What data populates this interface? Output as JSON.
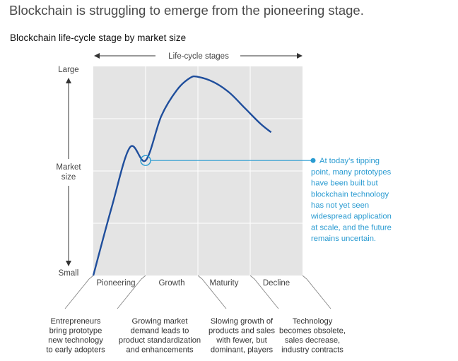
{
  "headline": "Blockchain is struggling to emerge from the pioneering stage.",
  "chart_data": {
    "type": "line",
    "title": "Blockchain life-cycle stage by market size",
    "top_axis_label": "Life-cycle stages",
    "ylabel_lines": [
      "Market",
      "size"
    ],
    "y_top_label": "Large",
    "y_bottom_label": "Small",
    "stages": [
      {
        "name": "Pioneering",
        "description": [
          "Entrepreneurs",
          "bring prototype",
          "new technology",
          "to early adopters"
        ]
      },
      {
        "name": "Growth",
        "description": [
          "Growing market",
          "demand leads to",
          "product standardization",
          "and enhancements"
        ]
      },
      {
        "name": "Maturity",
        "description": [
          "Slowing growth of",
          "products and sales",
          "with fewer, but",
          "dominant, players"
        ]
      },
      {
        "name": "Decline",
        "description": [
          "Technology",
          "becomes obsolete,",
          "sales decrease,",
          "industry contracts"
        ]
      }
    ],
    "xlim": [
      0,
      4
    ],
    "ylim": [
      0,
      4
    ],
    "grid": true,
    "curve": {
      "x": [
        0,
        0.35,
        0.7,
        1.0,
        1.3,
        1.6,
        1.85,
        2.0,
        2.3,
        2.6,
        2.9,
        3.2,
        3.4
      ],
      "y": [
        0,
        1.3,
        2.45,
        2.2,
        3.05,
        3.55,
        3.78,
        3.8,
        3.7,
        3.5,
        3.2,
        2.9,
        2.74
      ]
    },
    "highlight_point": {
      "x": 1.0,
      "y": 2.2
    },
    "annotation_lines": [
      "At today’s tipping",
      "point, many prototypes",
      "have been built but",
      "blockchain technology",
      "has not yet seen",
      "widespread application",
      "at scale, and the future",
      "remains uncertain."
    ],
    "colors": {
      "curve": "#1f4e9c",
      "annotation": "#2a9bd1",
      "plot_bg": "#e4e4e4",
      "grid": "#ffffff"
    }
  }
}
